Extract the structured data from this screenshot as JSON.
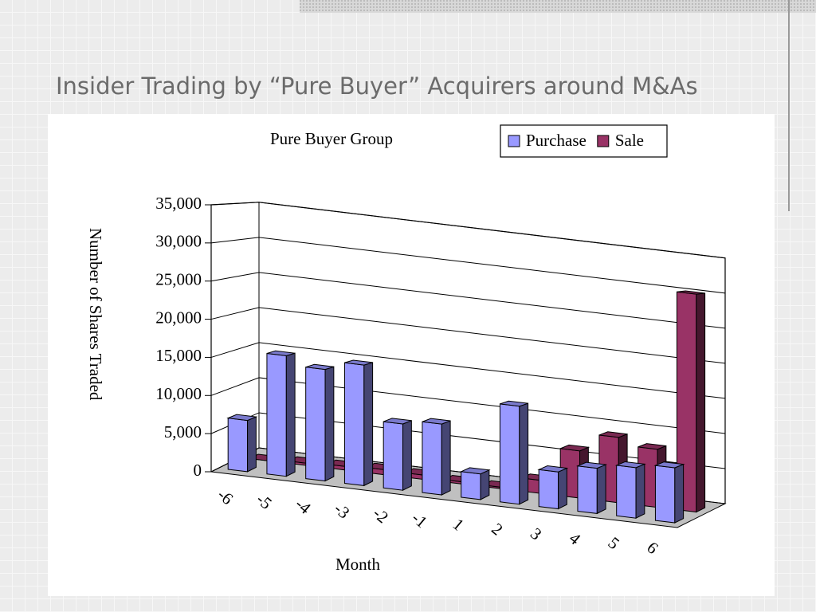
{
  "slide": {
    "title": "Insider Trading by “Pure Buyer” Acquirers around M&As"
  },
  "chart_data": {
    "type": "bar3d",
    "title": "Pure Buyer Group",
    "x_label": "Month",
    "y_label": "Number of Shares Traded",
    "categories": [
      "-6",
      "-5",
      "-4",
      "-3",
      "-2",
      "-1",
      "1",
      "2",
      "3",
      "4",
      "5",
      "6"
    ],
    "series": [
      {
        "name": "Purchase",
        "color": "#9999ff",
        "values": [
          6800,
          16000,
          14800,
          16000,
          8800,
          9400,
          3400,
          13000,
          4900,
          6000,
          6700,
          7300
        ]
      },
      {
        "name": "Sale",
        "color": "#993366",
        "values": [
          0,
          300,
          500,
          700,
          600,
          300,
          200,
          1800,
          6500,
          9000,
          8000,
          30000
        ]
      }
    ],
    "ylim": [
      0,
      35000
    ],
    "yticks": [
      0,
      {
        "value": 5000,
        "label": "5,000"
      },
      {
        "value": 10000,
        "label": "10,000"
      },
      {
        "value": 15000,
        "label": "15,000"
      },
      {
        "value": 20000,
        "label": "20,000"
      },
      {
        "value": 25000,
        "label": "25,000"
      },
      {
        "value": 30000,
        "label": "30,000"
      },
      {
        "value": 35000,
        "label": "35,000"
      }
    ],
    "grid": true,
    "legend": "top-right"
  }
}
